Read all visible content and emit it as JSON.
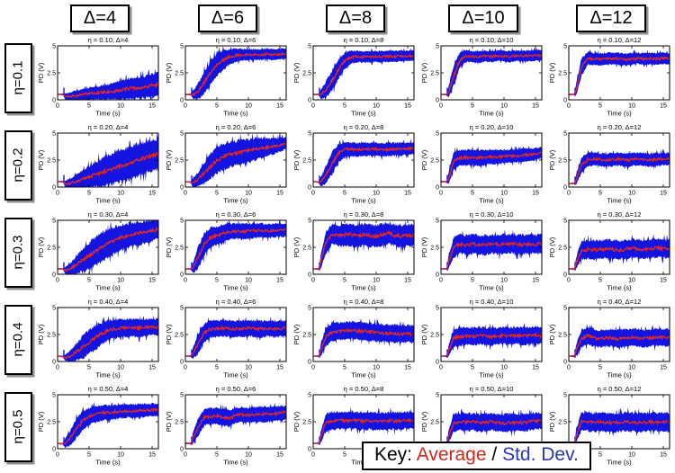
{
  "page": {
    "background": "#ffffff"
  },
  "columns": [
    {
      "label": "Δ=4"
    },
    {
      "label": "Δ=6"
    },
    {
      "label": "Δ=8"
    },
    {
      "label": "Δ=10"
    },
    {
      "label": "Δ=12"
    }
  ],
  "rows": [
    {
      "label": "η=0.1"
    },
    {
      "label": "η=0.2"
    },
    {
      "label": "η=0.3"
    },
    {
      "label": "η=0.4"
    },
    {
      "label": "η=0.5"
    }
  ],
  "key": {
    "prefix": "Key: ",
    "average_label": "Average",
    "separator": " / ",
    "std_label": "Std. Dev.",
    "average_color": "#cc2a1c",
    "std_color": "#2a35b4"
  },
  "colors": {
    "std_band": "#1414e0",
    "average_line": "#e8291f",
    "axes": "#000000",
    "header_shadow": "#909090"
  },
  "chart_data": {
    "type": "line",
    "grid": "off",
    "x_label": "Time (s)",
    "y_label": "PD (V)",
    "x_ticks": [
      0,
      5,
      10,
      15
    ],
    "y_ticks": [
      0,
      2.5,
      5
    ],
    "x_range": [
      0,
      16
    ],
    "y_range": [
      0,
      5
    ],
    "series_legend": [
      "Average (red line)",
      "Std. Dev. (blue band)"
    ],
    "x": [
      0,
      0.9,
      1.2,
      2,
      3,
      4,
      5,
      6,
      7,
      8,
      9,
      10,
      11,
      12,
      13,
      14,
      15,
      16
    ],
    "cells": [
      {
        "row_label": "η=0.1",
        "col_label": "Δ=4",
        "title": "η = 0.10, Δ=4",
        "mean": [
          0.5,
          0.5,
          0.3,
          0.32,
          0.4,
          0.5,
          0.58,
          0.62,
          0.68,
          0.72,
          0.8,
          0.9,
          1.0,
          1.1,
          1.15,
          1.2,
          1.3,
          1.4
        ],
        "std": [
          0.05,
          0.08,
          0.3,
          0.35,
          0.45,
          0.5,
          0.55,
          0.6,
          0.65,
          0.7,
          0.78,
          0.85,
          0.92,
          0.98,
          1.0,
          1.02,
          1.08,
          1.1
        ]
      },
      {
        "row_label": "η=0.1",
        "col_label": "Δ=6",
        "title": "η = 0.10, Δ=6",
        "mean": [
          0.5,
          0.5,
          0.45,
          0.8,
          1.6,
          2.5,
          3.2,
          3.7,
          4.0,
          4.1,
          4.15,
          4.2,
          4.2,
          4.2,
          4.25,
          4.2,
          4.25,
          4.3
        ],
        "std": [
          0.05,
          0.08,
          0.35,
          0.7,
          1.0,
          1.1,
          1.05,
          0.9,
          0.7,
          0.6,
          0.55,
          0.5,
          0.5,
          0.5,
          0.48,
          0.5,
          0.48,
          0.45
        ]
      },
      {
        "row_label": "η=0.1",
        "col_label": "Δ=8",
        "title": "η = 0.10, Δ=8",
        "mean": [
          0.5,
          0.5,
          0.5,
          0.9,
          1.8,
          2.8,
          3.6,
          3.95,
          4.0,
          3.98,
          4.0,
          4.02,
          4.0,
          4.05,
          4.02,
          4.05,
          4.08,
          4.1
        ],
        "std": [
          0.05,
          0.08,
          0.4,
          0.75,
          0.95,
          0.9,
          0.75,
          0.6,
          0.52,
          0.5,
          0.5,
          0.5,
          0.5,
          0.5,
          0.5,
          0.5,
          0.48,
          0.45
        ]
      },
      {
        "row_label": "η=0.1",
        "col_label": "Δ=10",
        "title": "η = 0.10, Δ=10",
        "mean": [
          0.5,
          0.5,
          0.7,
          2.2,
          3.7,
          4.05,
          4.0,
          3.95,
          4.05,
          4.0,
          4.1,
          4.05,
          4.0,
          4.1,
          4.05,
          4.08,
          4.1,
          4.1
        ],
        "std": [
          0.05,
          0.08,
          0.5,
          0.9,
          0.7,
          0.55,
          0.5,
          0.52,
          0.5,
          0.5,
          0.48,
          0.5,
          0.52,
          0.5,
          0.5,
          0.5,
          0.48,
          0.48
        ]
      },
      {
        "row_label": "η=0.1",
        "col_label": "Δ=12",
        "title": "η = 0.10, Δ=12",
        "mean": [
          0.5,
          0.5,
          1.0,
          3.0,
          3.85,
          3.8,
          3.75,
          3.8,
          3.85,
          3.78,
          3.72,
          3.8,
          3.85,
          3.8,
          3.82,
          3.78,
          3.85,
          3.8
        ],
        "std": [
          0.05,
          0.08,
          0.55,
          0.8,
          0.6,
          0.55,
          0.55,
          0.55,
          0.52,
          0.55,
          0.55,
          0.52,
          0.52,
          0.55,
          0.52,
          0.55,
          0.52,
          0.52
        ]
      },
      {
        "row_label": "η=0.2",
        "col_label": "Δ=4",
        "title": "η = 0.20, Δ=4",
        "mean": [
          0.5,
          0.5,
          0.3,
          0.35,
          0.55,
          0.75,
          0.95,
          1.15,
          1.35,
          1.55,
          1.75,
          1.95,
          2.15,
          2.35,
          2.55,
          2.75,
          2.9,
          3.05
        ],
        "std": [
          0.05,
          0.08,
          0.3,
          0.4,
          0.6,
          0.8,
          1.0,
          1.15,
          1.3,
          1.4,
          1.45,
          1.5,
          1.5,
          1.5,
          1.5,
          1.45,
          1.42,
          1.4
        ]
      },
      {
        "row_label": "η=0.2",
        "col_label": "Δ=6",
        "title": "η = 0.20, Δ=6",
        "mean": [
          0.5,
          0.45,
          0.4,
          0.7,
          1.3,
          1.9,
          2.45,
          2.8,
          3.0,
          3.15,
          3.3,
          3.4,
          3.5,
          3.6,
          3.7,
          3.8,
          3.9,
          4.1
        ],
        "std": [
          0.05,
          0.08,
          0.35,
          0.65,
          1.0,
          1.15,
          1.2,
          1.2,
          1.15,
          1.12,
          1.08,
          1.05,
          1.0,
          0.92,
          0.82,
          0.72,
          0.62,
          0.5
        ]
      },
      {
        "row_label": "η=0.2",
        "col_label": "Δ=8",
        "title": "η = 0.20, Δ=8",
        "mean": [
          0.5,
          0.45,
          0.5,
          1.1,
          2.2,
          3.1,
          3.5,
          3.5,
          3.45,
          3.5,
          3.52,
          3.5,
          3.45,
          3.5,
          3.5,
          3.52,
          3.55,
          3.6
        ],
        "std": [
          0.05,
          0.08,
          0.4,
          0.8,
          1.0,
          0.85,
          0.68,
          0.62,
          0.62,
          0.6,
          0.6,
          0.62,
          0.62,
          0.6,
          0.6,
          0.6,
          0.58,
          0.55
        ]
      },
      {
        "row_label": "η=0.2",
        "col_label": "Δ=10",
        "title": "η = 0.20, Δ=10",
        "mean": [
          0.5,
          0.5,
          0.8,
          2.4,
          2.7,
          2.72,
          2.75,
          2.7,
          2.75,
          2.8,
          2.8,
          2.85,
          2.88,
          2.9,
          2.95,
          3.0,
          3.05,
          3.2
        ],
        "std": [
          0.05,
          0.08,
          0.5,
          0.8,
          0.72,
          0.7,
          0.7,
          0.7,
          0.68,
          0.65,
          0.65,
          0.62,
          0.6,
          0.6,
          0.6,
          0.58,
          0.55,
          0.5
        ]
      },
      {
        "row_label": "η=0.2",
        "col_label": "Δ=12",
        "title": "η = 0.20, Δ=12",
        "mean": [
          0.3,
          0.35,
          0.7,
          2.0,
          2.55,
          2.6,
          2.55,
          2.5,
          2.55,
          2.6,
          2.5,
          2.55,
          2.6,
          2.55,
          2.5,
          2.55,
          2.6,
          2.6
        ],
        "std": [
          0.05,
          0.08,
          0.45,
          0.7,
          0.62,
          0.6,
          0.6,
          0.6,
          0.6,
          0.58,
          0.6,
          0.6,
          0.58,
          0.6,
          0.6,
          0.58,
          0.58,
          0.55
        ]
      },
      {
        "row_label": "η=0.3",
        "col_label": "Δ=4",
        "title": "η = 0.30, Δ=4",
        "mean": [
          0.5,
          0.5,
          0.35,
          0.5,
          0.9,
          1.3,
          1.7,
          2.1,
          2.5,
          2.85,
          3.15,
          3.4,
          3.55,
          3.7,
          3.8,
          3.9,
          4.0,
          4.2
        ],
        "std": [
          0.05,
          0.08,
          0.3,
          0.5,
          0.8,
          1.0,
          1.2,
          1.3,
          1.3,
          1.28,
          1.22,
          1.18,
          1.12,
          1.08,
          1.02,
          0.98,
          0.92,
          0.88
        ]
      },
      {
        "row_label": "η=0.3",
        "col_label": "Δ=6",
        "title": "η = 0.30, Δ=6",
        "mean": [
          0.5,
          0.5,
          0.6,
          1.5,
          2.8,
          3.4,
          3.6,
          3.8,
          3.95,
          4.0,
          3.95,
          4.0,
          4.05,
          4.08,
          4.0,
          4.05,
          4.1,
          4.1
        ],
        "std": [
          0.05,
          0.08,
          0.45,
          1.0,
          1.0,
          0.9,
          0.82,
          0.78,
          0.72,
          0.7,
          0.7,
          0.7,
          0.68,
          0.65,
          0.65,
          0.62,
          0.6,
          0.6
        ]
      },
      {
        "row_label": "η=0.3",
        "col_label": "Δ=8",
        "title": "η = 0.30, Δ=8",
        "mean": [
          0.5,
          0.5,
          1.2,
          2.9,
          3.7,
          3.6,
          3.65,
          3.7,
          3.5,
          3.7,
          3.6,
          3.5,
          3.7,
          3.8,
          3.6,
          3.5,
          3.6,
          3.6
        ],
        "std": [
          0.05,
          0.08,
          0.6,
          1.0,
          0.9,
          0.95,
          1.0,
          1.0,
          1.0,
          1.0,
          1.0,
          1.0,
          1.0,
          0.95,
          1.0,
          1.0,
          1.0,
          0.95
        ]
      },
      {
        "row_label": "η=0.3",
        "col_label": "Δ=10",
        "title": "η = 0.30, Δ=10",
        "mean": [
          0.5,
          0.5,
          1.1,
          2.5,
          2.8,
          2.7,
          2.8,
          2.75,
          2.7,
          2.8,
          2.75,
          2.8,
          2.85,
          2.8,
          2.75,
          2.8,
          2.8,
          2.85
        ],
        "std": [
          0.05,
          0.08,
          0.55,
          0.9,
          0.85,
          0.9,
          0.88,
          0.9,
          0.9,
          0.85,
          0.9,
          0.88,
          0.85,
          0.85,
          0.9,
          0.88,
          0.85,
          0.85
        ]
      },
      {
        "row_label": "η=0.3",
        "col_label": "Δ=12",
        "title": "η = 0.30, Δ=12",
        "mean": [
          0.5,
          0.5,
          1.1,
          2.2,
          2.3,
          2.25,
          2.3,
          2.35,
          2.3,
          2.25,
          2.3,
          2.4,
          2.35,
          2.3,
          2.4,
          2.45,
          2.4,
          2.35
        ],
        "std": [
          0.05,
          0.08,
          0.55,
          0.85,
          0.85,
          0.85,
          0.85,
          0.85,
          0.85,
          0.85,
          0.85,
          0.85,
          0.85,
          0.85,
          0.85,
          0.85,
          0.85,
          0.85
        ]
      },
      {
        "row_label": "η=0.4",
        "col_label": "Δ=4",
        "title": "η = 0.40, Δ=4",
        "mean": [
          0.5,
          0.45,
          0.35,
          0.5,
          0.9,
          1.35,
          1.8,
          2.2,
          2.6,
          2.85,
          3.0,
          3.1,
          3.1,
          3.15,
          3.1,
          3.15,
          3.2,
          3.2
        ],
        "std": [
          0.05,
          0.08,
          0.3,
          0.5,
          0.8,
          1.0,
          1.1,
          1.1,
          1.0,
          0.92,
          0.85,
          0.82,
          0.8,
          0.8,
          0.8,
          0.78,
          0.75,
          0.75
        ]
      },
      {
        "row_label": "η=0.4",
        "col_label": "Δ=6",
        "title": "η = 0.40, Δ=6",
        "mean": [
          0.5,
          0.5,
          0.8,
          1.6,
          2.7,
          3.0,
          3.05,
          3.1,
          3.05,
          3.0,
          3.05,
          3.1,
          3.05,
          3.0,
          3.05,
          3.0,
          3.05,
          3.1
        ],
        "std": [
          0.05,
          0.08,
          0.5,
          0.9,
          0.85,
          0.8,
          0.75,
          0.75,
          0.75,
          0.75,
          0.75,
          0.72,
          0.75,
          0.75,
          0.72,
          0.75,
          0.7,
          0.7
        ]
      },
      {
        "row_label": "η=0.4",
        "col_label": "Δ=8",
        "title": "η = 0.40, Δ=8",
        "mean": [
          0.5,
          0.5,
          1.0,
          2.3,
          2.7,
          2.8,
          2.85,
          2.9,
          2.85,
          2.8,
          2.75,
          2.7,
          2.65,
          2.6,
          2.6,
          2.55,
          2.6,
          2.5
        ],
        "std": [
          0.05,
          0.08,
          0.55,
          0.85,
          0.8,
          0.8,
          0.8,
          0.78,
          0.8,
          0.8,
          0.8,
          0.8,
          0.8,
          0.8,
          0.8,
          0.8,
          0.78,
          0.8
        ]
      },
      {
        "row_label": "η=0.4",
        "col_label": "Δ=10",
        "title": "η = 0.40, Δ=10",
        "mean": [
          0.5,
          0.5,
          1.0,
          2.2,
          2.3,
          2.35,
          2.3,
          2.4,
          2.35,
          2.3,
          2.35,
          2.4,
          2.35,
          2.4,
          2.35,
          2.4,
          2.45,
          2.4
        ],
        "std": [
          0.05,
          0.08,
          0.5,
          0.8,
          0.8,
          0.78,
          0.8,
          0.78,
          0.8,
          0.8,
          0.78,
          0.78,
          0.8,
          0.78,
          0.8,
          0.78,
          0.78,
          0.78
        ]
      },
      {
        "row_label": "η=0.4",
        "col_label": "Δ=12",
        "title": "η = 0.40, Δ=12",
        "mean": [
          0.5,
          0.5,
          1.1,
          2.1,
          2.4,
          2.2,
          2.1,
          2.2,
          2.15,
          2.1,
          2.2,
          2.25,
          2.2,
          2.15,
          2.2,
          2.25,
          2.2,
          2.25
        ],
        "std": [
          0.05,
          0.08,
          0.55,
          0.8,
          0.78,
          0.8,
          0.8,
          0.78,
          0.8,
          0.8,
          0.78,
          0.78,
          0.8,
          0.8,
          0.78,
          0.78,
          0.8,
          0.78
        ]
      },
      {
        "row_label": "η=0.5",
        "col_label": "Δ=4",
        "title": "η = 0.50, Δ=4",
        "mean": [
          0.5,
          0.45,
          0.5,
          1.0,
          1.9,
          2.6,
          3.0,
          3.2,
          3.3,
          3.35,
          3.4,
          3.45,
          3.5,
          3.5,
          3.55,
          3.55,
          3.6,
          3.6
        ],
        "std": [
          0.05,
          0.08,
          0.4,
          0.7,
          0.9,
          0.85,
          0.8,
          0.75,
          0.7,
          0.68,
          0.65,
          0.62,
          0.6,
          0.6,
          0.6,
          0.6,
          0.58,
          0.55
        ]
      },
      {
        "row_label": "η=0.5",
        "col_label": "Δ=6",
        "title": "η = 0.50, Δ=6",
        "mean": [
          0.5,
          0.5,
          1.0,
          2.0,
          2.9,
          3.0,
          3.05,
          2.9,
          2.8,
          3.1,
          3.15,
          3.1,
          3.15,
          3.2,
          3.2,
          3.25,
          3.3,
          3.4
        ],
        "std": [
          0.05,
          0.08,
          0.5,
          0.8,
          0.75,
          0.75,
          0.75,
          0.75,
          0.75,
          0.7,
          0.7,
          0.7,
          0.7,
          0.7,
          0.7,
          0.65,
          0.65,
          0.6
        ]
      },
      {
        "row_label": "η=0.5",
        "col_label": "Δ=8",
        "title": "η = 0.50, Δ=8",
        "mean": [
          0.5,
          0.5,
          1.1,
          2.4,
          2.6,
          2.65,
          2.6,
          2.65,
          2.6,
          2.55,
          2.6,
          2.5,
          2.55,
          2.6,
          2.55,
          2.6,
          2.65,
          2.6
        ],
        "std": [
          0.05,
          0.08,
          0.55,
          0.8,
          0.8,
          0.78,
          0.8,
          0.78,
          0.8,
          0.8,
          0.78,
          0.8,
          0.8,
          0.78,
          0.8,
          0.78,
          0.78,
          0.8
        ]
      },
      {
        "row_label": "η=0.5",
        "col_label": "Δ=10",
        "title": "η = 0.50, Δ=10",
        "mean": [
          0.5,
          0.5,
          1.1,
          2.4,
          2.5,
          2.45,
          2.5,
          2.4,
          2.45,
          2.5,
          2.4,
          2.35,
          2.4,
          2.45,
          2.4,
          2.5,
          2.55,
          2.6
        ],
        "std": [
          0.05,
          0.08,
          0.55,
          0.8,
          0.8,
          0.8,
          0.78,
          0.8,
          0.78,
          0.78,
          0.8,
          0.85,
          0.82,
          0.8,
          0.8,
          0.78,
          0.78,
          0.75
        ]
      },
      {
        "row_label": "η=0.5",
        "col_label": "Δ=12",
        "title": "η = 0.50, Δ=12",
        "mean": [
          0.5,
          0.5,
          1.2,
          2.5,
          2.5,
          2.45,
          2.5,
          2.45,
          2.4,
          2.45,
          2.5,
          2.45,
          2.4,
          2.45,
          2.5,
          2.45,
          2.5,
          2.45
        ],
        "std": [
          0.05,
          0.08,
          0.6,
          0.85,
          0.85,
          0.85,
          0.85,
          0.85,
          0.85,
          0.85,
          0.85,
          0.85,
          0.85,
          0.85,
          0.85,
          0.85,
          0.85,
          0.85
        ]
      }
    ]
  }
}
